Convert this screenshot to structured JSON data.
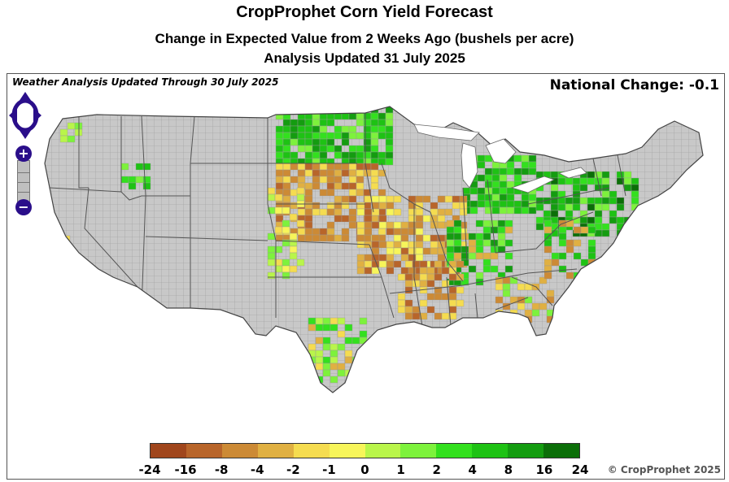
{
  "title": "CropProphet Corn Yield Forecast",
  "subtitle": "Change in Expected Value from 2 Weeks Ago (bushels per acre)",
  "analysis_date": "Analysis Updated 31 July 2025",
  "weather_note": "Weather Analysis Updated Through 30 July 2025",
  "national_change": "National Change: -0.1",
  "copyright": "© CropProphet 2025",
  "controls": {
    "zoom_in_label": "+",
    "zoom_out_label": "−",
    "pan_icon": "pan-arrows-icon"
  },
  "legend": {
    "labels": [
      "-24",
      "-16",
      "-8",
      "-4",
      "-2",
      "-1",
      "0",
      "1",
      "2",
      "4",
      "8",
      "16",
      "24"
    ],
    "colors": [
      "#a0461c",
      "#b8652a",
      "#cc8a35",
      "#e0b042",
      "#f5dc50",
      "#f7f55a",
      "#b9f54a",
      "#7df23c",
      "#33e01e",
      "#1ec214",
      "#149c10",
      "#0b6e08"
    ]
  },
  "map_colors": {
    "no_data": "#c8c8c8",
    "state_border": "#555555",
    "county_border": "#9a9a9a"
  }
}
